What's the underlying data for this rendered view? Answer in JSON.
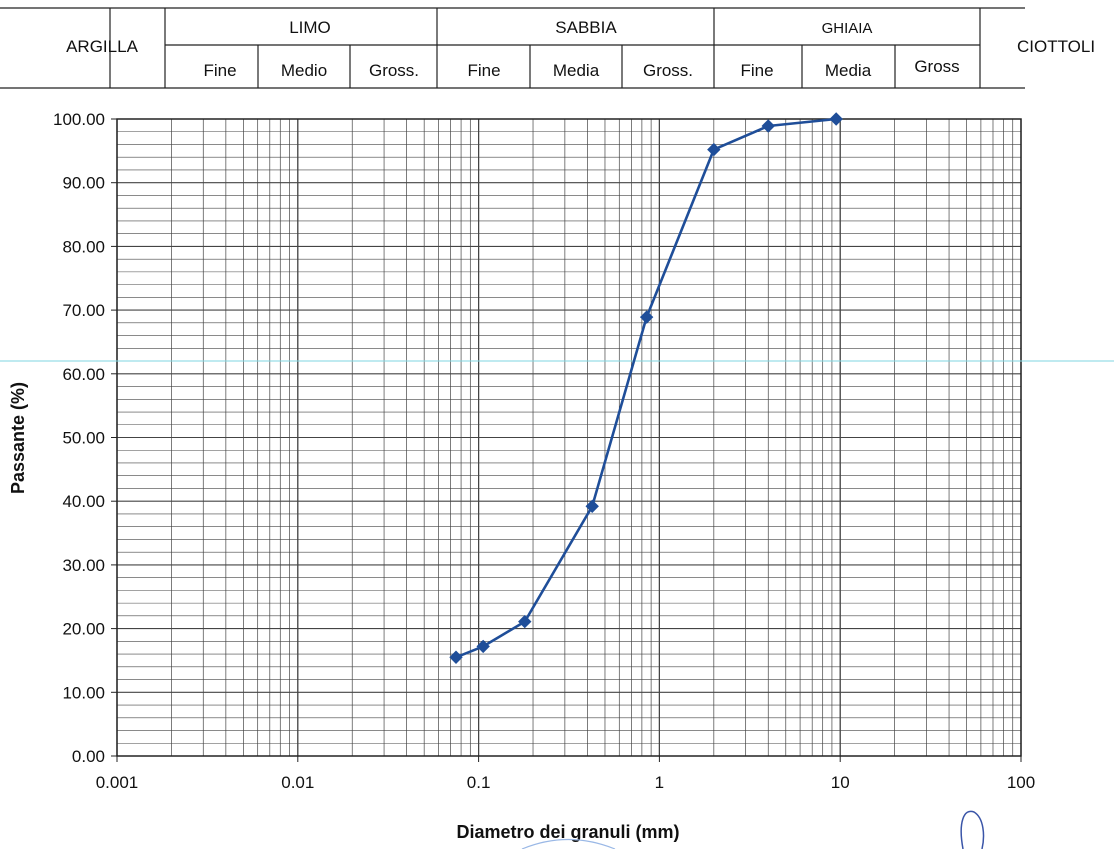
{
  "chart_data": {
    "type": "line",
    "x_scale": "log",
    "xlim": [
      0.001,
      100
    ],
    "ylim": [
      0,
      100
    ],
    "grid": true,
    "legend": "none",
    "xlabel": "Diametro dei granuli (mm)",
    "ylabel": "Passante (%)",
    "x_tick_labels": [
      "0.001",
      "0.01",
      "0.1",
      "1",
      "10",
      "100"
    ],
    "y_tick_labels": [
      "0.00",
      "10.00",
      "20.00",
      "30.00",
      "40.00",
      "50.00",
      "60.00",
      "70.00",
      "80.00",
      "90.00",
      "100.00"
    ],
    "series": [
      {
        "color": "#1f4e99",
        "marker": "diamond",
        "x": [
          0.075,
          0.106,
          0.18,
          0.425,
          0.85,
          2,
          4,
          9.5
        ],
        "y": [
          15.5,
          17.2,
          21.1,
          39.2,
          68.9,
          95.2,
          98.9,
          100.0
        ]
      }
    ]
  },
  "classification": {
    "argilla": "ARGILLA",
    "limo": {
      "label": "LIMO",
      "subs": [
        "Fine",
        "Medio",
        "Gross."
      ]
    },
    "sabbia": {
      "label": "SABBIA",
      "subs": [
        "Fine",
        "Media",
        "Gross."
      ]
    },
    "ghiaia": {
      "label": "GHIAIA",
      "subs": [
        "Fine",
        "Media",
        "Gross"
      ]
    },
    "ciottoli": "CIOTTOLI"
  },
  "colors": {
    "series": "#1f4e99",
    "grid": "#444444",
    "overlay_line": "#7fd6e0"
  }
}
